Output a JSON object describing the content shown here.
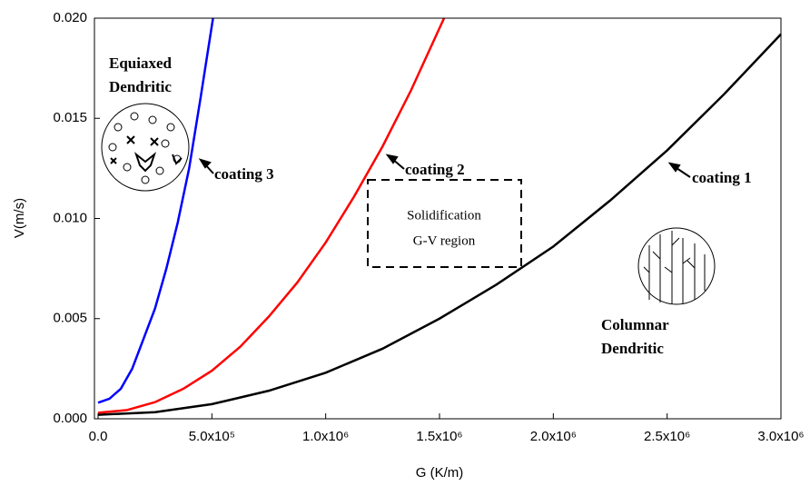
{
  "chart_data": {
    "type": "line",
    "x_label": "G (K/m)",
    "y_label": "V(m/s)",
    "xlim": [
      0,
      3000000
    ],
    "ylim": [
      0,
      0.02
    ],
    "xticks": [
      {
        "value": 0,
        "label": "0.0"
      },
      {
        "value": 500000,
        "label": "5.0x10⁵"
      },
      {
        "value": 1000000,
        "label": "1.0x10⁶"
      },
      {
        "value": 1500000,
        "label": "1.5x10⁶"
      },
      {
        "value": 2000000,
        "label": "2.0x10⁶"
      },
      {
        "value": 2500000,
        "label": "2.5x10⁶"
      },
      {
        "value": 3000000,
        "label": "3.0x10⁶"
      }
    ],
    "yticks": [
      {
        "value": 0,
        "label": "0.000"
      },
      {
        "value": 0.005,
        "label": "0.005"
      },
      {
        "value": 0.01,
        "label": "0.010"
      },
      {
        "value": 0.015,
        "label": "0.015"
      },
      {
        "value": 0.02,
        "label": "0.020"
      }
    ],
    "series": [
      {
        "name": "coating 1",
        "color": "#000000",
        "x": [
          0,
          250000,
          500000,
          750000,
          1000000,
          1250000,
          1500000,
          1750000,
          2000000,
          2250000,
          2500000,
          2750000,
          3000000
        ],
        "values": [
          0.0002,
          0.00033,
          0.00073,
          0.0014,
          0.0023,
          0.0035,
          0.005,
          0.0067,
          0.0086,
          0.0109,
          0.0134,
          0.0162,
          0.0192
        ]
      },
      {
        "name": "coating 2",
        "color": "#ff0000",
        "x": [
          0,
          125000,
          250000,
          375000,
          500000,
          625000,
          750000,
          875000,
          1000000,
          1125000,
          1250000,
          1375000,
          1520000
        ],
        "values": [
          0.0003,
          0.00043,
          0.00083,
          0.0015,
          0.0024,
          0.0036,
          0.0051,
          0.0068,
          0.0088,
          0.0111,
          0.0136,
          0.0164,
          0.02
        ]
      },
      {
        "name": "coating 3",
        "color": "#0000ff",
        "x": [
          0,
          50000,
          100000,
          150000,
          200000,
          250000,
          300000,
          350000,
          400000,
          450000,
          505000
        ],
        "values": [
          0.0008,
          0.001,
          0.0015,
          0.0025,
          0.004,
          0.0055,
          0.0075,
          0.0098,
          0.0125,
          0.016,
          0.02
        ]
      }
    ],
    "annotations": {
      "equiaxed": [
        "Equiaxed",
        "Dendritic"
      ],
      "columnar": [
        "Columnar",
        "Dendritic"
      ],
      "region": [
        "Solidification",
        "G-V region"
      ]
    }
  }
}
